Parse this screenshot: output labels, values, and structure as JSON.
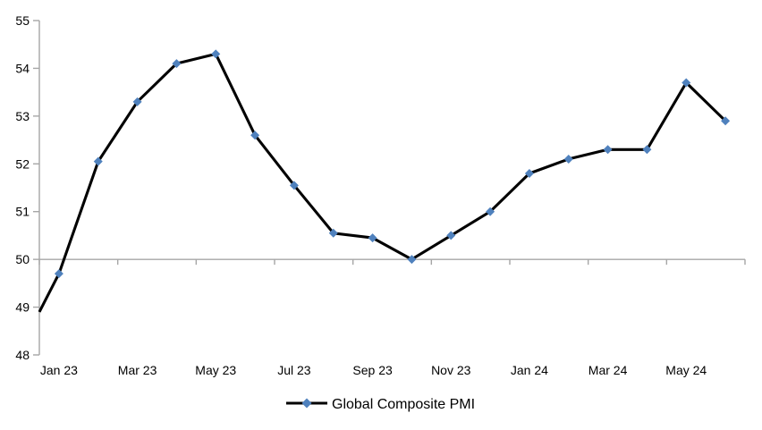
{
  "chart_data": {
    "type": "line",
    "title": "",
    "series_name": "Global Composite PMI",
    "categories": [
      "Jan 23",
      "Feb 23",
      "Mar 23",
      "Apr 23",
      "May 23",
      "Jun 23",
      "Jul 23",
      "Aug 23",
      "Sep 23",
      "Oct 23",
      "Nov 23",
      "Dec 23",
      "Jan 24",
      "Feb 24",
      "Mar 24",
      "Apr 24",
      "May 24",
      "Jun 24"
    ],
    "values": [
      49.7,
      52.05,
      53.3,
      54.1,
      54.3,
      52.6,
      51.55,
      50.55,
      50.45,
      50.0,
      50.5,
      51.0,
      51.8,
      52.1,
      52.3,
      52.3,
      53.7,
      52.9
    ],
    "line_start_value_at_left_axis": 48.9,
    "ylim": [
      48,
      55
    ],
    "yticks": [
      55,
      54,
      53,
      52,
      51,
      50,
      49,
      48
    ],
    "visible_x_labels": [
      "Jan 23",
      "Mar 23",
      "May 23",
      "Jul 23",
      "Sep 23",
      "Nov 23",
      "Jan 24",
      "Mar 24",
      "May 24"
    ],
    "xtick_label_every": 2,
    "x_axis_at_value": 50,
    "grid": false,
    "legend_position": "bottom-center",
    "marker": "diamond",
    "colors": {
      "marker": "#4F81BD",
      "line": "#000000",
      "axis": "#A6A6A6",
      "text": "#000000",
      "background": "#FFFFFF"
    }
  }
}
